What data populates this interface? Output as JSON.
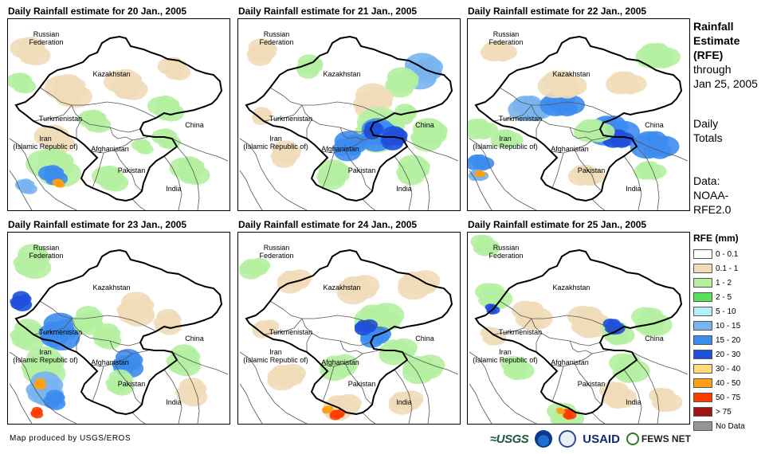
{
  "panels": [
    {
      "title": "Daily Rainfall estimate for 20 Jan., 2005"
    },
    {
      "title": "Daily Rainfall estimate for 21 Jan., 2005"
    },
    {
      "title": "Daily Rainfall estimate for 22 Jan., 2005"
    },
    {
      "title": "Daily Rainfall estimate for 23 Jan., 2005"
    },
    {
      "title": "Daily Rainfall estimate for 24 Jan., 2005"
    },
    {
      "title": "Daily Rainfall estimate for 25 Jan., 2005"
    }
  ],
  "map_labels": {
    "russia_1": "Russian",
    "russia_2": "Federation",
    "kazakhstan": "Kazakhstan",
    "turkmenistan": "Turkmenistan",
    "china": "China",
    "iran_1": "Iran",
    "iran_2": "(Islamic Republic of)",
    "afghanistan": "Afghanistan",
    "pakistan": "Pakistan",
    "india": "India"
  },
  "sidebar": {
    "heading_1": "Rainfall",
    "heading_2": "Estimate",
    "heading_3": "(RFE)",
    "through": "through",
    "date": "Jan 25, 2005",
    "totals_1": "Daily",
    "totals_2": "Totals",
    "data_1": "Data:",
    "data_2": "NOAA-",
    "data_3": "RFE2.0"
  },
  "legend": {
    "title": "RFE (mm)",
    "items": [
      {
        "label": "0 - 0.1",
        "color": "#ffffff"
      },
      {
        "label": "0.1 - 1",
        "color": "#f0dcb8"
      },
      {
        "label": "1 - 2",
        "color": "#b4f0a0"
      },
      {
        "label": "2 - 5",
        "color": "#5ae05a"
      },
      {
        "label": "5 - 10",
        "color": "#b4f0f8"
      },
      {
        "label": "10 - 15",
        "color": "#78b4f0"
      },
      {
        "label": "15 - 20",
        "color": "#3c8cf0"
      },
      {
        "label": "20 - 30",
        "color": "#1e50dc"
      },
      {
        "label": "30 - 40",
        "color": "#ffdc78"
      },
      {
        "label": "40 - 50",
        "color": "#ffa014"
      },
      {
        "label": "50 - 75",
        "color": "#ff3c00"
      },
      {
        "label": "> 75",
        "color": "#a01414"
      },
      {
        "label": "No Data",
        "color": "#969696"
      }
    ]
  },
  "footer": {
    "credit": "Map produced by USGS/EROS",
    "logo_usgs": "≈USGS",
    "logo_usaid": "USAID",
    "logo_fews": "FEWS NET"
  }
}
